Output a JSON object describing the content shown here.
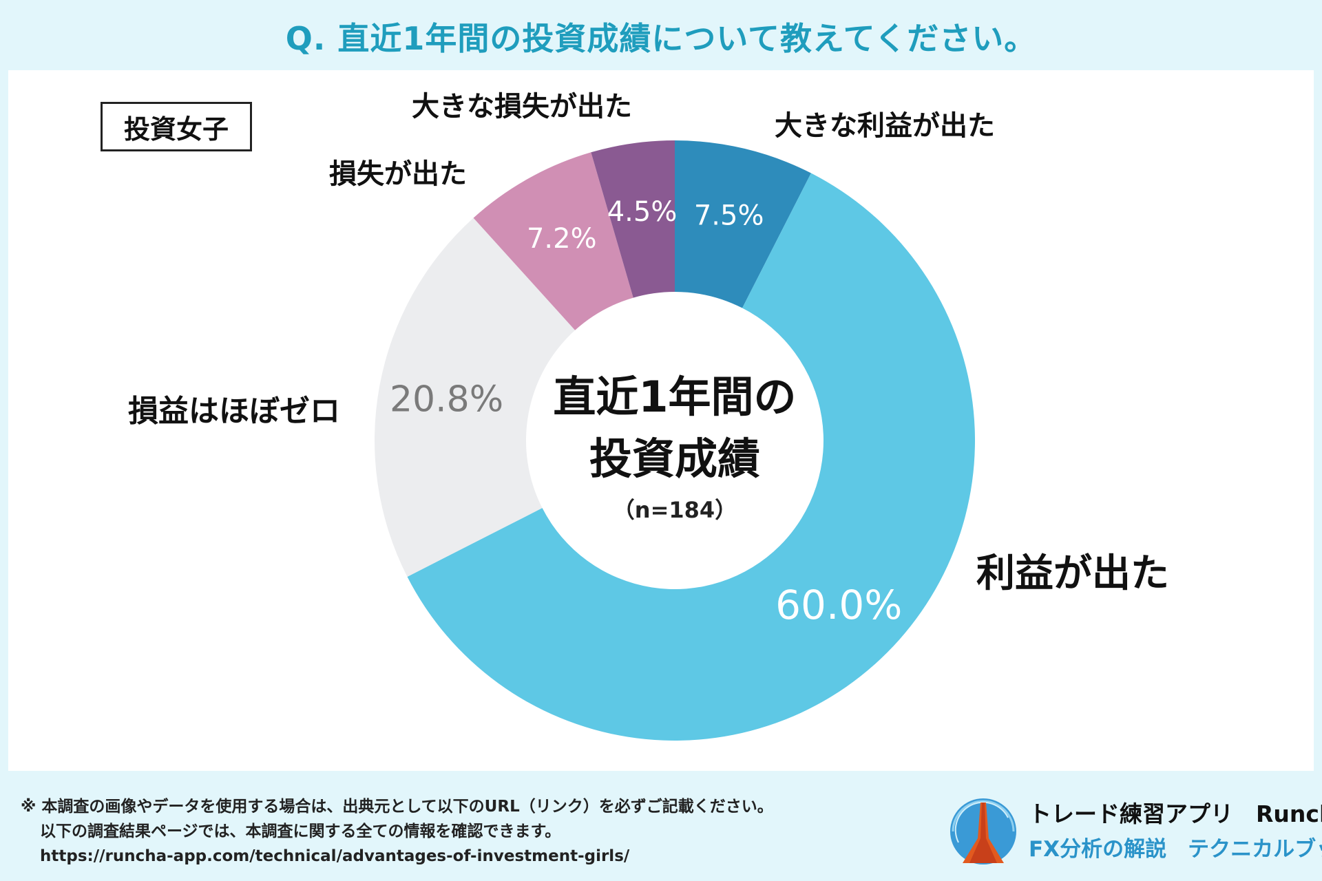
{
  "header": {
    "title": "Q. 直近1年間の投資成績について教えてください。"
  },
  "tag": "投資女子",
  "center": {
    "line1": "直近1年間の",
    "line2": "投資成績",
    "n": "（n=184）"
  },
  "chart_data": {
    "type": "pie",
    "categories": [
      "大きな利益が出た",
      "利益が出た",
      "損益はほぼゼロ",
      "損失が出た",
      "大きな損失が出た"
    ],
    "values": [
      7.5,
      60.0,
      20.8,
      7.2,
      4.5
    ],
    "value_labels": [
      "7.5%",
      "60.0%",
      "20.8%",
      "7.2%",
      "4.5%"
    ],
    "colors": [
      "#2e8cbb",
      "#5ec8e5",
      "#ecedef",
      "#d08fb4",
      "#8a5a92"
    ],
    "value_label_colors": [
      "#ffffff",
      "#ffffff",
      "#7a7a7a",
      "#ffffff",
      "#ffffff"
    ],
    "legend": "none"
  },
  "footer": {
    "line1": "※ 本調査の画像やデータを使用する場合は、出典元として以下のURL（リンク）を必ずご記載ください。",
    "line2": "以下の調査結果ページでは、本調査に関する全ての情報を確認できます。",
    "line3": "https://runcha-app.com/technical/advantages-of-investment-girls/"
  },
  "brand": {
    "name": "トレード練習アプリ　Runcha",
    "sub": "FX分析の解説　テクニカルブック"
  }
}
